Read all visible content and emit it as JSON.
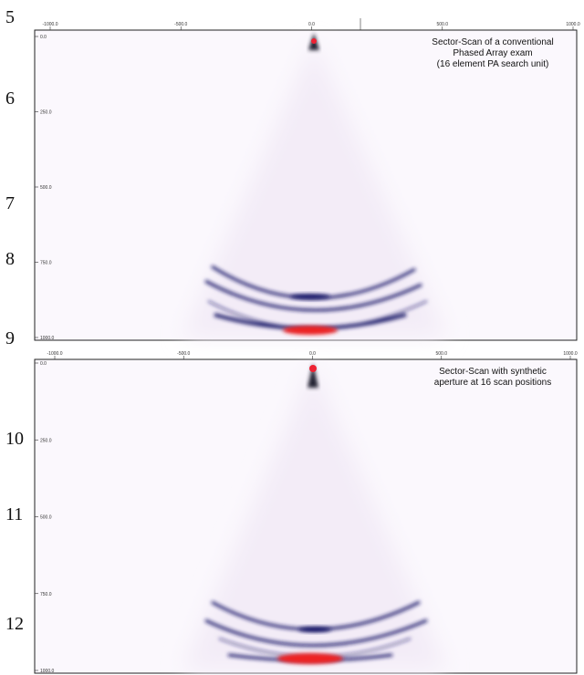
{
  "margin_numbers": [
    "5",
    "6",
    "7",
    "8",
    "9",
    "10",
    "11",
    "12"
  ],
  "panels": [
    {
      "x_ticks": [
        "-1000.0",
        "-500.0",
        "0.0",
        "500.0",
        "1000.0"
      ],
      "y_ticks": [
        "0.0",
        "250.0",
        "500.0",
        "750.0",
        "1000.0"
      ],
      "caption": [
        "Sector-Scan of a conventional",
        "Phased Array exam",
        "(16 element PA search unit)"
      ]
    },
    {
      "x_ticks": [
        "-1000.0",
        "-500.0",
        "0.0",
        "500.0",
        "1000.0"
      ],
      "y_ticks": [
        "0.0",
        "250.0",
        "500.0",
        "750.0",
        "1000.0"
      ],
      "caption": [
        "Sector-Scan with synthetic",
        "aperture at 16 scan positions"
      ]
    }
  ]
}
